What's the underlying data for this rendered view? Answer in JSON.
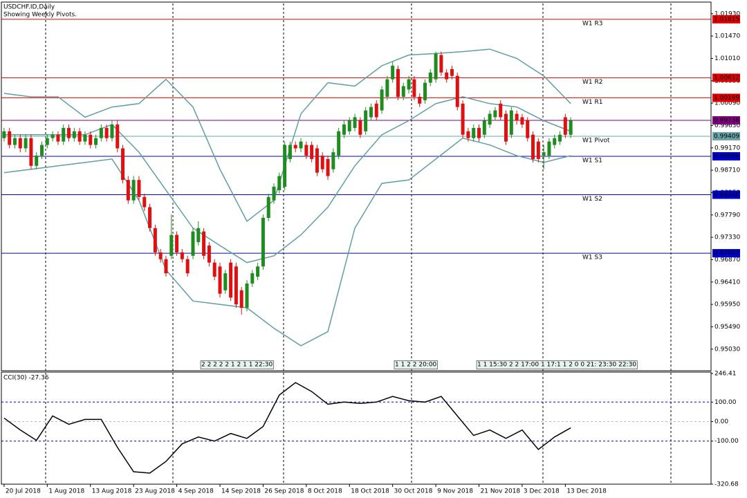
{
  "chart_data": {
    "type": "candlestick",
    "title": "USDCHF.ID,Daily",
    "subtitle": "Showing Weekly Pivots.",
    "colors": {
      "up": "#1e8c1e",
      "down": "#e01010"
    },
    "xlim": [
      -0.5,
      131
    ],
    "xticks": [
      {
        "value": 0,
        "label": "20 Jul 2018"
      },
      {
        "value": 8,
        "label": "1 Aug 2018"
      },
      {
        "value": 16,
        "label": "13 Aug 2018"
      },
      {
        "value": 24,
        "label": "23 Aug 2018"
      },
      {
        "value": 32,
        "label": "4 Sep 2018"
      },
      {
        "value": 40,
        "label": "14 Sep 2018"
      },
      {
        "value": 48,
        "label": "26 Sep 2018"
      },
      {
        "value": 56,
        "label": "8 Oct 2018"
      },
      {
        "value": 64,
        "label": "18 Oct 2018"
      },
      {
        "value": 72,
        "label": "30 Oct 2018"
      },
      {
        "value": 80,
        "label": "9 Nov 2018"
      },
      {
        "value": 88,
        "label": "21 Nov 2018"
      },
      {
        "value": 96,
        "label": "3 Dec 2018"
      },
      {
        "value": 104,
        "label": "13 Dec 2018"
      }
    ],
    "ylim": [
      0.946,
      1.0214
    ],
    "yticks": [
      {
        "value": 1.0193,
        "label": "1.01930"
      },
      {
        "value": 1.0147,
        "label": "1.01470"
      },
      {
        "value": 1.0101,
        "label": "1.01010"
      },
      {
        "value": 1.0055,
        "label": "1.00550"
      },
      {
        "value": 1.0009,
        "label": "1.00090"
      },
      {
        "value": 0.9963,
        "label": "0.99630"
      },
      {
        "value": 0.9917,
        "label": "0.99170"
      },
      {
        "value": 0.9871,
        "label": "0.98710"
      },
      {
        "value": 0.9825,
        "label": "0.98250"
      },
      {
        "value": 0.9779,
        "label": "0.97790"
      },
      {
        "value": 0.9733,
        "label": "0.97330"
      },
      {
        "value": 0.9687,
        "label": "0.96870"
      },
      {
        "value": 0.9641,
        "label": "0.96410"
      },
      {
        "value": 0.9595,
        "label": "0.95950"
      },
      {
        "value": 0.9549,
        "label": "0.95490"
      },
      {
        "value": 0.9503,
        "label": "0.95030"
      }
    ],
    "candles": [
      [
        0.9937,
        0.9958,
        0.993,
        0.9951
      ],
      [
        0.9951,
        0.9958,
        0.9916,
        0.9923
      ],
      [
        0.9923,
        0.9944,
        0.9916,
        0.9937
      ],
      [
        0.9937,
        0.9944,
        0.9908,
        0.9916
      ],
      [
        0.9916,
        0.9944,
        0.9908,
        0.9937
      ],
      [
        0.9937,
        0.9944,
        0.9873,
        0.988
      ],
      [
        0.988,
        0.9908,
        0.9873,
        0.9901
      ],
      [
        0.9901,
        0.993,
        0.9894,
        0.9923
      ],
      [
        0.9923,
        0.9944,
        0.9916,
        0.9937
      ],
      [
        0.9937,
        0.9951,
        0.993,
        0.9944
      ],
      [
        0.9944,
        0.9951,
        0.9923,
        0.993
      ],
      [
        0.993,
        0.9965,
        0.9923,
        0.9958
      ],
      [
        0.9958,
        0.9965,
        0.993,
        0.9937
      ],
      [
        0.9937,
        0.9958,
        0.993,
        0.9951
      ],
      [
        0.9951,
        0.9958,
        0.9923,
        0.993
      ],
      [
        0.993,
        0.9951,
        0.9923,
        0.9944
      ],
      [
        0.9944,
        0.9951,
        0.9916,
        0.9923
      ],
      [
        0.9923,
        0.9944,
        0.9916,
        0.9937
      ],
      [
        0.9937,
        0.9965,
        0.993,
        0.9958
      ],
      [
        0.9958,
        0.9965,
        0.993,
        0.9937
      ],
      [
        0.9937,
        0.9973,
        0.993,
        0.9965
      ],
      [
        0.9965,
        0.9973,
        0.9908,
        0.9916
      ],
      [
        0.9916,
        0.9923,
        0.9844,
        0.9851
      ],
      [
        0.9851,
        0.9859,
        0.9802,
        0.9809
      ],
      [
        0.9809,
        0.9859,
        0.9802,
        0.9851
      ],
      [
        0.9851,
        0.9859,
        0.9809,
        0.9816
      ],
      [
        0.9816,
        0.9823,
        0.9787,
        0.9795
      ],
      [
        0.9795,
        0.9802,
        0.9745,
        0.9752
      ],
      [
        0.9752,
        0.9759,
        0.9695,
        0.9702
      ],
      [
        0.9702,
        0.9709,
        0.9681,
        0.9688
      ],
      [
        0.9688,
        0.9695,
        0.9652,
        0.9659
      ],
      [
        0.9695,
        0.978,
        0.9688,
        0.9738
      ],
      [
        0.9738,
        0.9745,
        0.9695,
        0.9702
      ],
      [
        0.9702,
        0.9709,
        0.9681,
        0.9688
      ],
      [
        0.9688,
        0.9695,
        0.9652,
        0.9659
      ],
      [
        0.9695,
        0.9752,
        0.9688,
        0.9745
      ],
      [
        0.9723,
        0.9766,
        0.9716,
        0.9752
      ],
      [
        0.9745,
        0.9752,
        0.9688,
        0.9695
      ],
      [
        0.9716,
        0.9723,
        0.9673,
        0.9681
      ],
      [
        0.9681,
        0.9688,
        0.9645,
        0.9652
      ],
      [
        0.9673,
        0.9681,
        0.9609,
        0.9617
      ],
      [
        0.9624,
        0.9666,
        0.9617,
        0.9659
      ],
      [
        0.9681,
        0.9688,
        0.9602,
        0.9609
      ],
      [
        0.9673,
        0.9681,
        0.9588,
        0.9595
      ],
      [
        0.9624,
        0.9631,
        0.9574,
        0.9588
      ],
      [
        0.9588,
        0.9645,
        0.9581,
        0.9638
      ],
      [
        0.9638,
        0.9666,
        0.9631,
        0.9659
      ],
      [
        0.9652,
        0.9681,
        0.9645,
        0.9673
      ],
      [
        0.9673,
        0.978,
        0.9666,
        0.9773
      ],
      [
        0.9773,
        0.9823,
        0.9766,
        0.9816
      ],
      [
        0.9809,
        0.9844,
        0.9802,
        0.9837
      ],
      [
        0.983,
        0.9866,
        0.9823,
        0.9859
      ],
      [
        0.9837,
        0.993,
        0.983,
        0.9923
      ],
      [
        0.9894,
        0.993,
        0.9887,
        0.9923
      ],
      [
        0.9923,
        0.993,
        0.9908,
        0.9916
      ],
      [
        0.9916,
        0.9937,
        0.9908,
        0.993
      ],
      [
        0.9923,
        0.993,
        0.9894,
        0.9901
      ],
      [
        0.9923,
        0.993,
        0.9887,
        0.9894
      ],
      [
        0.9916,
        0.9923,
        0.9859,
        0.9866
      ],
      [
        0.9901,
        0.9908,
        0.9866,
        0.9873
      ],
      [
        0.9894,
        0.9901,
        0.9851,
        0.9859
      ],
      [
        0.9873,
        0.9916,
        0.9866,
        0.9908
      ],
      [
        0.9901,
        0.9958,
        0.9894,
        0.9951
      ],
      [
        0.9944,
        0.9973,
        0.9937,
        0.9965
      ],
      [
        0.9951,
        0.998,
        0.9944,
        0.9973
      ],
      [
        0.9958,
        0.9987,
        0.9951,
        0.998
      ],
      [
        0.9973,
        0.998,
        0.9937,
        0.9944
      ],
      [
        0.9951,
        1.0001,
        0.9944,
        0.9994
      ],
      [
        0.998,
        1.0008,
        0.9973,
        1.0001
      ],
      [
        1.0008,
        1.0015,
        0.9973,
        0.998
      ],
      [
        0.9994,
        1.0044,
        0.9987,
        1.0037
      ],
      [
        1.0022,
        1.0065,
        1.0015,
        1.0058
      ],
      [
        1.0058,
        1.0094,
        1.0051,
        1.0086
      ],
      [
        1.0079,
        1.0086,
        1.0015,
        1.0022
      ],
      [
        1.0022,
        1.0051,
        1.0015,
        1.0044
      ],
      [
        1.0037,
        1.0065,
        1.0029,
        1.0058
      ],
      [
        1.0058,
        1.0065,
        1.0015,
        1.0022
      ],
      [
        1.0022,
        1.0029,
        1.0001,
        1.0008
      ],
      [
        1.0015,
        1.0058,
        1.0008,
        1.0051
      ],
      [
        1.0051,
        1.0079,
        1.0044,
        1.0072
      ],
      [
        1.0058,
        1.0115,
        1.0051,
        1.0111
      ],
      [
        1.0108,
        1.0115,
        1.0065,
        1.0072
      ],
      [
        1.0072,
        1.0079,
        1.0051,
        1.0058
      ],
      [
        1.0079,
        1.0086,
        1.0058,
        1.0065
      ],
      [
        1.0065,
        1.0072,
        0.9994,
        1.0001
      ],
      [
        1.0008,
        1.0015,
        0.9937,
        0.9944
      ],
      [
        0.9951,
        0.9958,
        0.993,
        0.9937
      ],
      [
        0.9937,
        0.9965,
        0.993,
        0.9958
      ],
      [
        0.9958,
        0.9965,
        0.993,
        0.9937
      ],
      [
        0.9944,
        0.998,
        0.9937,
        0.9973
      ],
      [
        0.9965,
        0.9994,
        0.9958,
        0.9987
      ],
      [
        0.998,
        1.0001,
        0.9973,
        0.9994
      ],
      [
        1.0008,
        1.0015,
        0.9973,
        0.998
      ],
      [
        0.9987,
        0.9994,
        0.9923,
        0.993
      ],
      [
        0.9944,
        1.0001,
        0.9937,
        0.9994
      ],
      [
        0.9987,
        0.9994,
        0.9965,
        0.9973
      ],
      [
        0.998,
        0.9987,
        0.9958,
        0.9965
      ],
      [
        0.9973,
        0.998,
        0.993,
        0.9937
      ],
      [
        0.9944,
        0.9951,
        0.9887,
        0.9894
      ],
      [
        0.993,
        0.9937,
        0.9887,
        0.9894
      ],
      [
        0.9901,
        0.9923,
        0.9873,
        0.9908
      ],
      [
        0.9901,
        0.9937,
        0.9894,
        0.993
      ],
      [
        0.9923,
        0.9944,
        0.9916,
        0.9937
      ],
      [
        0.993,
        0.9951,
        0.9923,
        0.9944
      ],
      [
        0.998,
        0.9987,
        0.9937,
        0.9944
      ],
      [
        0.9944,
        0.998,
        0.9937,
        0.9973
      ]
    ],
    "bands": {
      "color": "#5f9ea0",
      "x": [
        0,
        5,
        10,
        15,
        20,
        25,
        30,
        35,
        40,
        45,
        50,
        55,
        60,
        65,
        70,
        75,
        80,
        85,
        90,
        95,
        100,
        105
      ],
      "upper": [
        1.0029,
        1.0022,
        1.0022,
        0.998,
        1.0001,
        1.0008,
        1.0058,
        1.0001,
        0.9873,
        0.9766,
        0.9809,
        0.9987,
        1.0051,
        1.0044,
        1.0086,
        1.0108,
        1.0111,
        1.0115,
        1.012,
        1.0101,
        1.0065,
        1.0008
      ],
      "middle": [
        0.9944,
        0.9944,
        0.9944,
        0.9944,
        0.9965,
        0.9908,
        0.983,
        0.9752,
        0.9716,
        0.9681,
        0.9695,
        0.9738,
        0.9795,
        0.988,
        0.9944,
        0.9973,
        1.0008,
        1.0022,
        1.0008,
        1.0001,
        0.9973,
        0.9951
      ],
      "lower": [
        0.9866,
        0.9873,
        0.988,
        0.9887,
        0.9894,
        0.9809,
        0.9666,
        0.9602,
        0.9595,
        0.9588,
        0.9546,
        0.951,
        0.9539,
        0.9752,
        0.9844,
        0.9851,
        0.9894,
        0.9937,
        0.9923,
        0.9901,
        0.9887,
        0.9901
      ]
    },
    "levels": [
      {
        "name": "W1 R3",
        "value": 1.01815,
        "color": "#e00000"
      },
      {
        "name": "W1 R2",
        "value": 1.00612,
        "color": "#e00000"
      },
      {
        "name": "W1 R1",
        "value": 1.00199,
        "color": "#e00000"
      },
      {
        "name": "W1 Pivot",
        "value": 0.99409,
        "color": "#6aa3a8"
      },
      {
        "name": "W1 S1",
        "value": 0.98996,
        "color": "#0000cc"
      },
      {
        "name": "W1 S2",
        "value": 0.98206,
        "color": "#0000cc"
      },
      {
        "name": "W1 S3",
        "value": 0.97003,
        "color": "#0000cc"
      }
    ],
    "price_level": {
      "value": 0.99736,
      "color": "#800080"
    },
    "period_markers": [
      "2 2 2 2 2 1 2 1 1 22:30",
      "1 1 2 2 20:00",
      "1 1 15:30 2 2 17:00 1 17:1 1 2 0 0 21: 23:30 22:30"
    ],
    "indicator": {
      "type": "line",
      "title": "CCI(30) -27.36",
      "color": "#000000",
      "ylim": [
        -320.68,
        246.41
      ],
      "yticks": [
        {
          "value": 246.41,
          "label": "246.41"
        },
        {
          "value": 100,
          "label": "100.00"
        },
        {
          "value": 0,
          "label": "0.00"
        },
        {
          "value": -100,
          "label": "-100.00"
        },
        {
          "value": -320.68,
          "label": "-320.68"
        }
      ],
      "x": [
        0,
        3,
        6,
        9,
        12,
        15,
        18,
        21,
        24,
        27,
        30,
        33,
        36,
        39,
        42,
        45,
        48,
        51,
        54,
        57,
        60,
        63,
        66,
        69,
        72,
        75,
        78,
        81,
        84,
        87,
        90,
        93,
        96,
        99,
        102,
        105
      ],
      "values": [
        18,
        -43,
        -96,
        29,
        -14,
        11,
        11,
        -132,
        -257,
        -264,
        -204,
        -114,
        -79,
        -100,
        -61,
        -86,
        -25,
        136,
        200,
        154,
        89,
        100,
        93,
        100,
        129,
        107,
        100,
        129,
        29,
        -71,
        -43,
        -86,
        -43,
        -143,
        -79,
        -32
      ]
    }
  }
}
